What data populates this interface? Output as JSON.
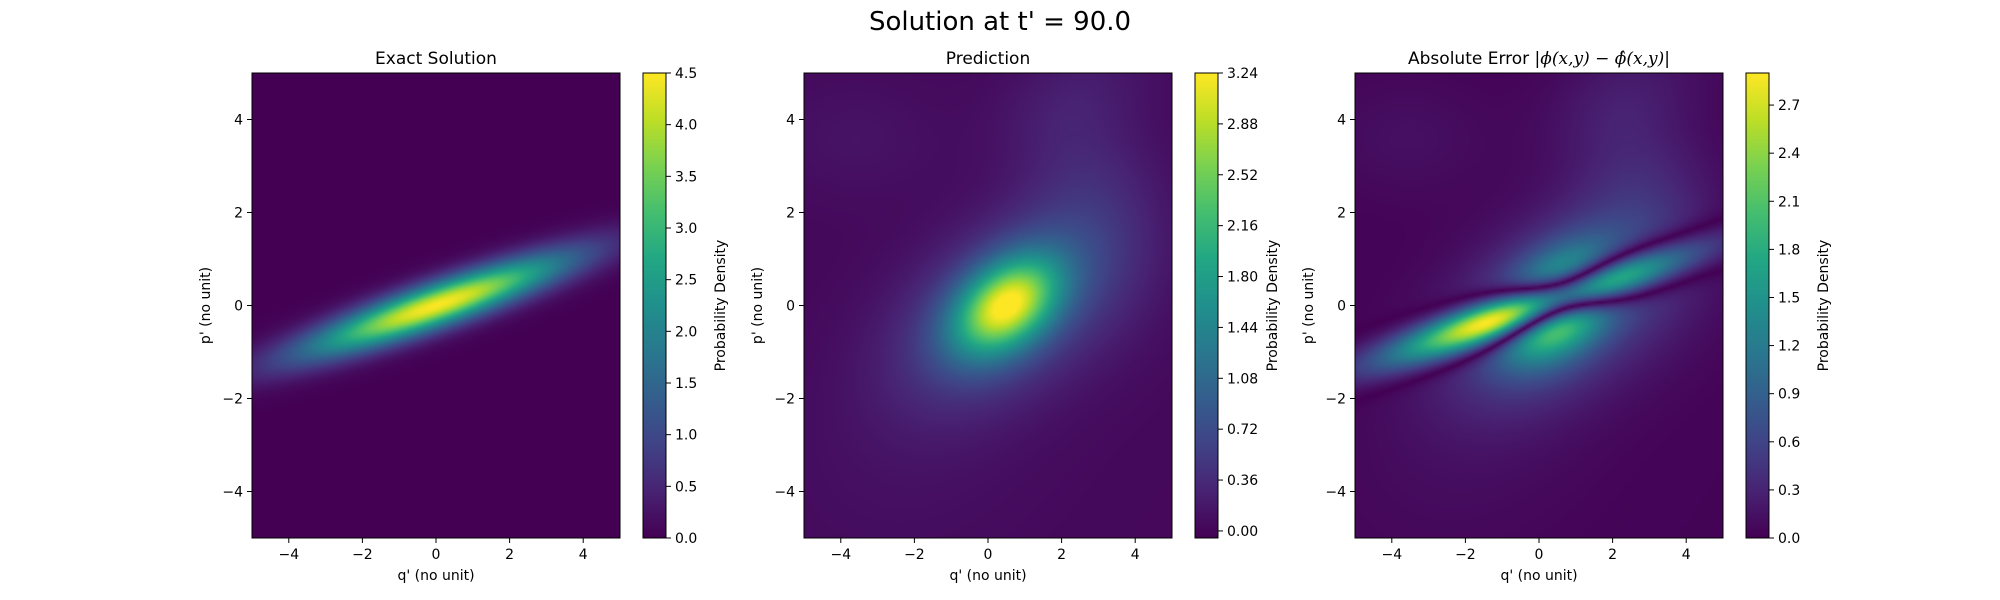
{
  "figure": {
    "title": "Solution at t' = 90.0"
  },
  "colormap": "viridis",
  "chart_data": [
    {
      "type": "heatmap",
      "title": "Exact Solution",
      "xlabel": "q' (no unit)",
      "ylabel": "p' (no unit)",
      "colorbar_label": "Probability Density",
      "xlim": [
        -5,
        5
      ],
      "ylim": [
        -5,
        5
      ],
      "xticks": [
        -4,
        -2,
        0,
        2,
        4
      ],
      "yticks": [
        -4,
        -2,
        0,
        2,
        4
      ],
      "xtick_labels": [
        "−4",
        "−2",
        "0",
        "2",
        "4"
      ],
      "ytick_labels": [
        "−4",
        "−2",
        "0",
        "2",
        "4"
      ],
      "vmin": 0.0,
      "vmax": 4.5,
      "colorbar_ticks": [
        0.0,
        0.5,
        1.0,
        1.5,
        2.0,
        2.5,
        3.0,
        3.5,
        4.0,
        4.5
      ],
      "colorbar_tick_labels": [
        "0.0",
        "0.5",
        "1.0",
        "1.5",
        "2.0",
        "2.5",
        "3.0",
        "3.5",
        "4.0",
        "4.5"
      ]
    },
    {
      "type": "heatmap",
      "title": "Prediction",
      "xlabel": "q' (no unit)",
      "ylabel": "p' (no unit)",
      "colorbar_label": "Probability Density",
      "xlim": [
        -5,
        5
      ],
      "ylim": [
        -5,
        5
      ],
      "xticks": [
        -4,
        -2,
        0,
        2,
        4
      ],
      "yticks": [
        -4,
        -2,
        0,
        2,
        4
      ],
      "xtick_labels": [
        "−4",
        "−2",
        "0",
        "2",
        "4"
      ],
      "ytick_labels": [
        "−4",
        "−2",
        "0",
        "2",
        "4"
      ],
      "vmin": -0.05,
      "vmax": 3.24,
      "colorbar_ticks": [
        0.0,
        0.36,
        0.72,
        1.08,
        1.44,
        1.8,
        2.16,
        2.52,
        2.88,
        3.24
      ],
      "colorbar_tick_labels": [
        "0.00",
        "0.36",
        "0.72",
        "1.08",
        "1.44",
        "1.80",
        "2.16",
        "2.52",
        "2.88",
        "3.24"
      ]
    },
    {
      "type": "heatmap",
      "title": "Absolute Error |ϕ(x,y) − ϕ̂(x,y)|",
      "xlabel": "q' (no unit)",
      "ylabel": "p' (no unit)",
      "colorbar_label": "Probability Density",
      "xlim": [
        -5,
        5
      ],
      "ylim": [
        -5,
        5
      ],
      "xticks": [
        -4,
        -2,
        0,
        2,
        4
      ],
      "yticks": [
        -4,
        -2,
        0,
        2,
        4
      ],
      "xtick_labels": [
        "−4",
        "−2",
        "0",
        "2",
        "4"
      ],
      "ytick_labels": [
        "−4",
        "−2",
        "0",
        "2",
        "4"
      ],
      "vmin": 0.0,
      "vmax": 2.9,
      "colorbar_ticks": [
        0.0,
        0.3,
        0.6,
        0.9,
        1.2,
        1.5,
        1.8,
        2.1,
        2.4,
        2.7
      ],
      "colorbar_tick_labels": [
        "0.0",
        "0.3",
        "0.6",
        "0.9",
        "1.2",
        "1.5",
        "1.8",
        "2.1",
        "2.4",
        "2.7"
      ]
    }
  ]
}
